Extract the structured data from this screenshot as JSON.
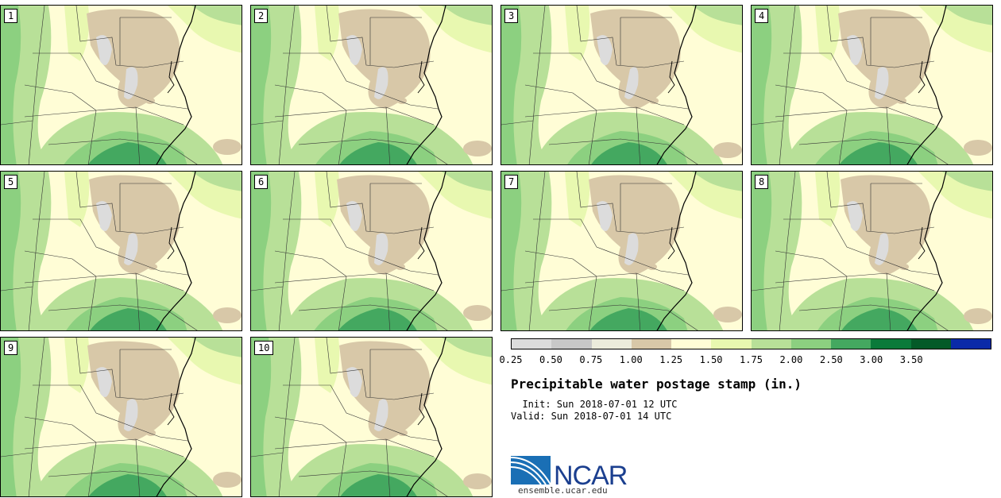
{
  "panels": [
    "1",
    "2",
    "3",
    "4",
    "5",
    "6",
    "7",
    "8",
    "9",
    "10"
  ],
  "legend": {
    "colors": [
      "#dcdcdc",
      "#c8c8c8",
      "#ececdc",
      "#d8c8a8",
      "#fffdd6",
      "#e8f8b0",
      "#b8e098",
      "#8cd080",
      "#44a860",
      "#0a7a3a",
      "#045a28",
      "#0a2aa8"
    ],
    "ticks": [
      "0.25",
      "0.50",
      "0.75",
      "1.00",
      "1.25",
      "1.50",
      "1.75",
      "2.00",
      "2.50",
      "3.00",
      "3.50"
    ]
  },
  "title": "Precipitable water postage stamp (in.)",
  "init": "  Init: Sun 2018-07-01 12 UTC",
  "valid": "Valid: Sun 2018-07-01 14 UTC",
  "logo": {
    "text": "NCAR",
    "url": "ensemble.ucar.edu"
  }
}
